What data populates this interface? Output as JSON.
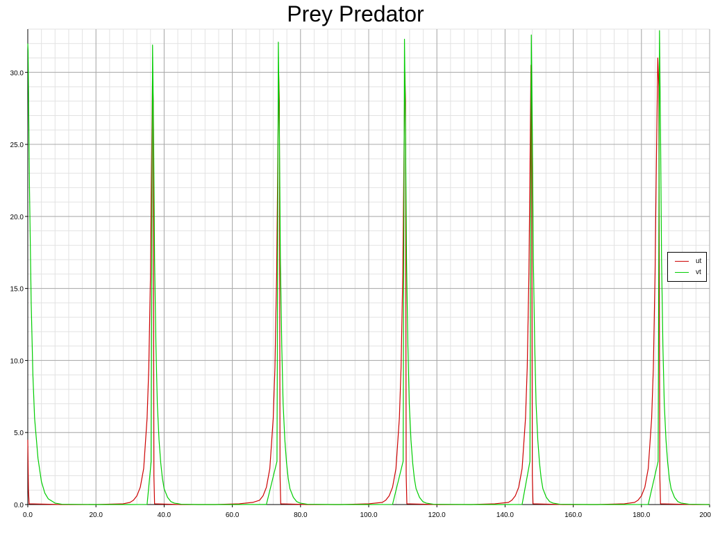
{
  "chart_data": {
    "type": "line",
    "title": "Prey Predator",
    "xlabel": "",
    "ylabel": "",
    "xlim": [
      0,
      200
    ],
    "ylim": [
      0,
      33
    ],
    "grid": true,
    "legend_position": "right",
    "x_ticks": [
      "0.0",
      "20.0",
      "40.0",
      "60.0",
      "80.0",
      "100.0",
      "120.0",
      "140.0",
      "160.0",
      "180.0",
      "200"
    ],
    "y_ticks": [
      "0.0",
      "5.0",
      "10.0",
      "15.0",
      "20.0",
      "25.0",
      "30.0"
    ],
    "series": [
      {
        "name": "ut",
        "color": "#cc0000",
        "x": [
          0,
          0.2,
          0.4,
          10,
          20,
          28,
          30,
          31,
          32,
          33,
          34,
          35,
          35.5,
          36,
          36.3,
          36.6,
          36.8,
          37.0,
          37.2,
          45,
          55,
          62,
          66,
          68,
          69,
          70,
          71,
          72,
          72.5,
          73,
          73.3,
          73.6,
          73.8,
          74.0,
          74.2,
          82,
          92,
          100,
          104,
          105,
          106,
          107,
          108,
          109,
          109.5,
          110,
          110.3,
          110.6,
          110.8,
          111.0,
          111.2,
          120,
          130,
          137,
          141,
          142,
          143,
          144,
          145,
          146,
          146.5,
          147,
          147.3,
          147.6,
          147.8,
          148.0,
          148.2,
          157,
          167,
          175,
          178,
          179,
          180,
          181,
          182,
          183,
          183.5,
          184,
          184.4,
          184.8,
          185.1,
          185.4,
          185.6,
          195,
          200
        ],
        "y": [
          4.5,
          1.0,
          0.05,
          0.0,
          0.0,
          0.05,
          0.15,
          0.3,
          0.6,
          1.2,
          2.5,
          6.0,
          9.5,
          16.0,
          23.0,
          30.0,
          28.0,
          2.0,
          0.05,
          0.0,
          0.0,
          0.05,
          0.15,
          0.3,
          0.6,
          1.2,
          2.5,
          6.0,
          9.5,
          16.0,
          23.0,
          30.0,
          28.0,
          2.0,
          0.05,
          0.0,
          0.0,
          0.05,
          0.15,
          0.3,
          0.6,
          1.2,
          2.5,
          6.0,
          9.5,
          16.0,
          23.0,
          30.0,
          28.0,
          2.0,
          0.05,
          0.0,
          0.0,
          0.05,
          0.15,
          0.3,
          0.6,
          1.2,
          2.5,
          6.0,
          9.5,
          16.0,
          23.0,
          30.5,
          28.0,
          2.0,
          0.05,
          0.0,
          0.0,
          0.05,
          0.15,
          0.3,
          0.6,
          1.2,
          2.5,
          6.0,
          9.5,
          16.0,
          24.0,
          31.0,
          29.0,
          2.0,
          0.05,
          0.0,
          0.0
        ]
      },
      {
        "name": "vt",
        "color": "#00cc00",
        "x": [
          0,
          0.1,
          0.5,
          1.0,
          1.5,
          2.0,
          3.0,
          4.0,
          5.0,
          6.0,
          8.0,
          10,
          20,
          30,
          35,
          36.2,
          36.6,
          36.9,
          37.2,
          37.6,
          38.0,
          38.5,
          39.0,
          39.5,
          40.0,
          41.0,
          42.0,
          43.0,
          45.0,
          50,
          60,
          70,
          73.1,
          73.5,
          73.8,
          74.1,
          74.5,
          74.9,
          75.4,
          75.9,
          76.4,
          76.9,
          77.9,
          78.9,
          79.9,
          82,
          90,
          100,
          107,
          110.1,
          110.5,
          110.8,
          111.1,
          111.5,
          111.9,
          112.4,
          112.9,
          113.4,
          113.9,
          114.9,
          115.9,
          116.9,
          119,
          130,
          140,
          145,
          147.3,
          147.7,
          148.0,
          148.3,
          148.7,
          149.1,
          149.6,
          150.1,
          150.6,
          151.1,
          152.1,
          153.1,
          154.1,
          156,
          165,
          175,
          182,
          184.9,
          185.3,
          185.6,
          185.9,
          186.3,
          186.7,
          187.2,
          187.7,
          188.2,
          188.7,
          189.7,
          190.7,
          191.7,
          194,
          200
        ],
        "y": [
          32.0,
          31.5,
          22.0,
          14.0,
          9.0,
          6.0,
          3.2,
          1.6,
          0.8,
          0.4,
          0.1,
          0.02,
          0.0,
          0.0,
          0.01,
          3.0,
          31.9,
          26.0,
          17.0,
          11.0,
          7.0,
          4.5,
          2.9,
          1.8,
          1.1,
          0.5,
          0.2,
          0.1,
          0.02,
          0.0,
          0.0,
          0.01,
          3.0,
          32.1,
          26.0,
          17.0,
          11.0,
          7.0,
          4.5,
          2.9,
          1.8,
          1.1,
          0.5,
          0.2,
          0.1,
          0.02,
          0.0,
          0.0,
          0.01,
          3.0,
          32.3,
          26.0,
          17.0,
          11.0,
          7.0,
          4.5,
          2.9,
          1.8,
          1.1,
          0.5,
          0.2,
          0.1,
          0.02,
          0.0,
          0.0,
          0.01,
          3.0,
          32.6,
          26.0,
          17.0,
          11.0,
          7.0,
          4.5,
          2.9,
          1.8,
          1.1,
          0.5,
          0.2,
          0.1,
          0.02,
          0.0,
          0.0,
          0.01,
          3.0,
          32.9,
          26.0,
          17.0,
          11.0,
          7.0,
          4.5,
          2.9,
          1.8,
          1.1,
          0.5,
          0.2,
          0.1,
          0.02,
          0.0
        ]
      }
    ]
  }
}
